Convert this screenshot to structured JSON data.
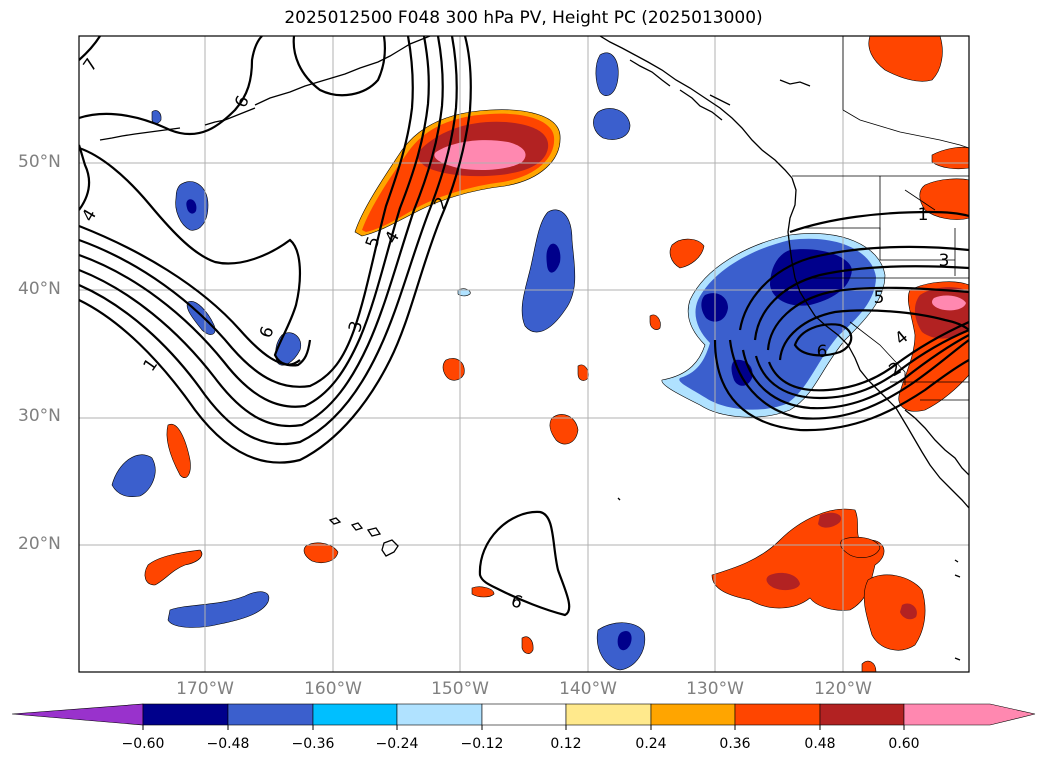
{
  "title": "2025012500 F048 300 hPa PV, Height PC (2025013000)",
  "lat_labels": [
    "50°N",
    "40°N",
    "30°N",
    "20°N"
  ],
  "lon_labels": [
    "170°W",
    "160°W",
    "150°W",
    "140°W",
    "130°W",
    "120°W"
  ],
  "contour_labels": [
    "7",
    "6",
    "4",
    "1",
    "6",
    "5",
    "4",
    "3",
    "2",
    "6",
    "1",
    "3",
    "5",
    "4",
    "2",
    "6",
    "1"
  ],
  "colorbar": {
    "ticks": [
      "−0.60",
      "−0.48",
      "−0.36",
      "−0.24",
      "−0.12",
      "0.12",
      "0.24",
      "0.36",
      "0.48",
      "0.60"
    ],
    "colors": [
      "#9932cc",
      "#00008b",
      "#3b5fcd",
      "#00bfff",
      "#b0e2ff",
      "#ffffff",
      "#ffe98c",
      "#ffa500",
      "#ff4500",
      "#b22222",
      "#ff88b0"
    ]
  }
}
